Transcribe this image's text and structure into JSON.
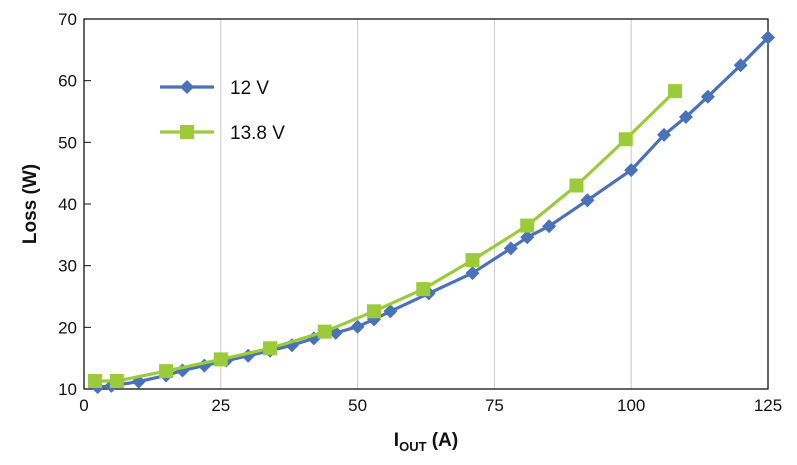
{
  "chart_data": {
    "type": "line",
    "title": "",
    "xlabel": "I",
    "xlabel_sub": "OUT",
    "xlabel_unit": " (A)",
    "ylabel": "Loss (W)",
    "xlim": [
      0,
      125
    ],
    "ylim": [
      10,
      70
    ],
    "xticks": [
      0,
      25,
      50,
      75,
      100,
      125
    ],
    "yticks": [
      10,
      20,
      30,
      40,
      50,
      60,
      70
    ],
    "grid": "vertical",
    "legend_position": "top-left",
    "series": [
      {
        "name": "12 V",
        "color": "#4a72b8",
        "marker": "diamond",
        "x": [
          2.5,
          5,
          10,
          15,
          18,
          22,
          26,
          30,
          34,
          38,
          42,
          46,
          50,
          53,
          56,
          63,
          71,
          78,
          81,
          85,
          92,
          100,
          106,
          110,
          114,
          120,
          125
        ],
        "y": [
          10.3,
          10.5,
          11.2,
          12.2,
          13,
          13.8,
          14.6,
          15.4,
          16.2,
          17.1,
          18.2,
          19.1,
          20.1,
          21.3,
          22.6,
          25.5,
          28.8,
          32.8,
          34.6,
          36.4,
          40.6,
          45.5,
          51.2,
          54.1,
          57.4,
          62.5,
          67
        ]
      },
      {
        "name": "13.8 V",
        "color": "#9bcb3b",
        "marker": "square",
        "x": [
          2,
          6,
          15,
          25,
          34,
          44,
          53,
          62,
          71,
          81,
          90,
          99,
          108
        ],
        "y": [
          11.3,
          11.3,
          12.9,
          14.8,
          16.6,
          19.3,
          22.6,
          26.2,
          30.9,
          36.5,
          43,
          50.5,
          58.3
        ]
      }
    ]
  }
}
